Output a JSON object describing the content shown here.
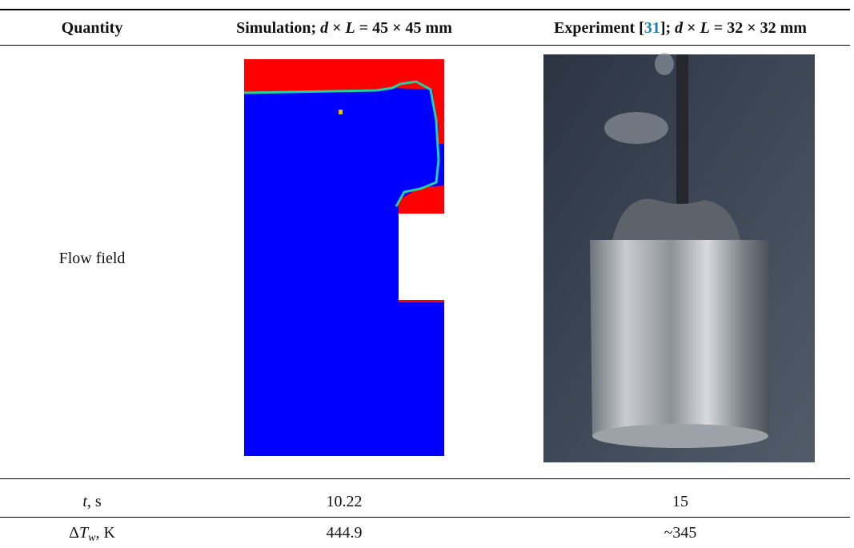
{
  "table": {
    "header": [
      "Quantity",
      [
        "Simulation; ",
        "d",
        " × ",
        "L",
        " = 45 × 45 mm"
      ],
      [
        "Experiment [",
        "31",
        "]; ",
        "d",
        " × ",
        "L",
        " = 32 × 32 mm"
      ]
    ],
    "rows": [
      [
        "Flow field"
      ],
      [
        [
          "t",
          ", s"
        ],
        10.22,
        15
      ],
      [
        [
          "Δ",
          "T",
          "w",
          ", K"
        ],
        444.9,
        "~345"
      ]
    ]
  }
}
